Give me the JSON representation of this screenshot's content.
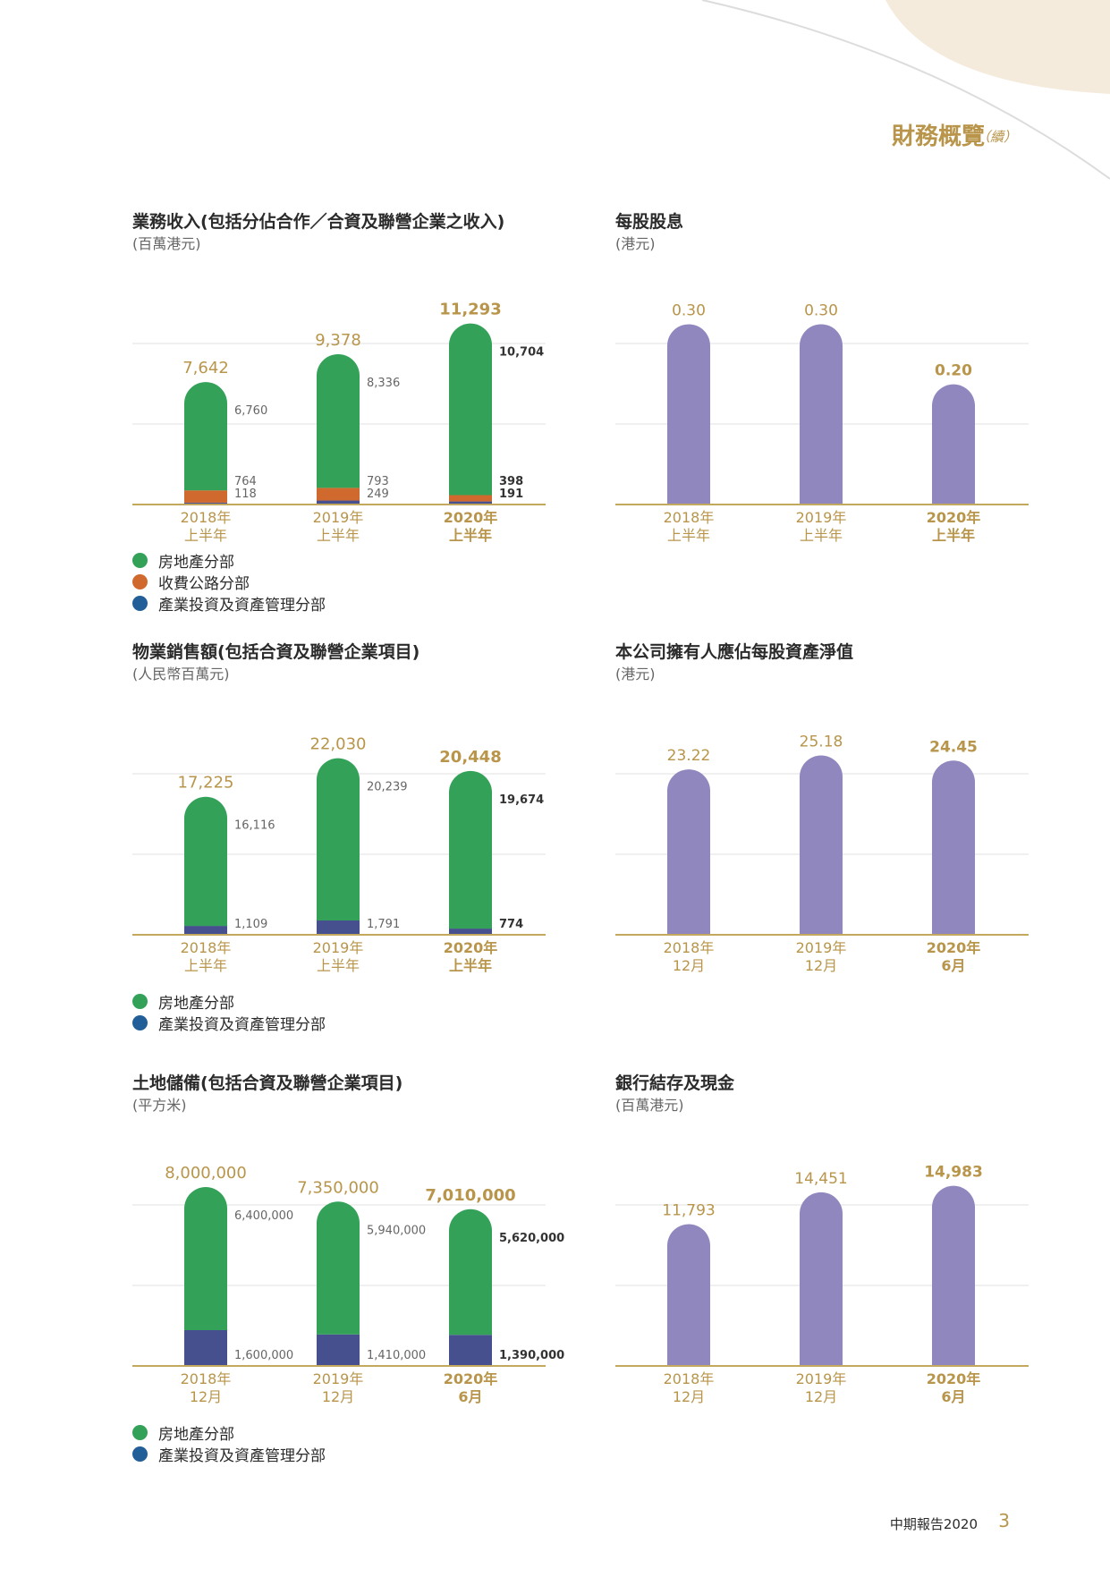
{
  "header": {
    "title": "財務概覽",
    "suffix": "（續）"
  },
  "footer": {
    "report": "中期報告2020",
    "page": "3"
  },
  "colors": {
    "property": "#33a258",
    "toll_road": "#d0692d",
    "investment_bar": "#47508f",
    "investment_legend": "#225e97",
    "per_share": "#9087bf",
    "gold": "#b8954a",
    "grid": "#e2e2e2"
  },
  "legends": {
    "property": "房地產分部",
    "toll_road": "收費公路分部",
    "investment": "產業投資及資產管理分部"
  },
  "chart_data": [
    {
      "type": "bar",
      "stacked": true,
      "title": "業務收入(包括分佔合作／合資及聯營企業之收入)",
      "unit": "(百萬港元)",
      "categories": [
        "2018年\n上半年",
        "2019年\n上半年",
        "2020年\n上半年"
      ],
      "totals": [
        "7,642",
        "9,378",
        "11,293"
      ],
      "ylim": [
        0,
        12000
      ],
      "series": [
        {
          "name": "產業投資及資產管理分部",
          "color_key": "investment_bar",
          "values": [
            118,
            249,
            191
          ],
          "labels": [
            "118",
            "249",
            "191"
          ]
        },
        {
          "name": "收費公路分部",
          "color_key": "toll_road",
          "values": [
            764,
            793,
            398
          ],
          "labels": [
            "764",
            "793",
            "398"
          ]
        },
        {
          "name": "房地產分部",
          "color_key": "property",
          "values": [
            6760,
            8336,
            10704
          ],
          "labels": [
            "6,760",
            "8,336",
            "10,704"
          ]
        }
      ],
      "legend": [
        "property",
        "toll_road",
        "investment"
      ]
    },
    {
      "type": "bar",
      "title": "每股股息",
      "unit": "(港元)",
      "categories": [
        "2018年\n上半年",
        "2019年\n上半年",
        "2020年\n上半年"
      ],
      "values": [
        0.3,
        0.3,
        0.2
      ],
      "labels": [
        "0.30",
        "0.30",
        "0.20"
      ],
      "ylim": [
        0,
        0.32
      ]
    },
    {
      "type": "bar",
      "stacked": true,
      "title": "物業銷售額(包括合資及聯營企業項目)",
      "unit": "(人民幣百萬元)",
      "categories": [
        "2018年\n上半年",
        "2019年\n上半年",
        "2020年\n上半年"
      ],
      "totals": [
        "17,225",
        "22,030",
        "20,448"
      ],
      "ylim": [
        0,
        24000
      ],
      "series": [
        {
          "name": "產業投資及資產管理分部",
          "color_key": "investment_bar",
          "values": [
            1109,
            1791,
            774
          ],
          "labels": [
            "1,109",
            "1,791",
            "774"
          ]
        },
        {
          "name": "房地產分部",
          "color_key": "property",
          "values": [
            16116,
            20239,
            19674
          ],
          "labels": [
            "16,116",
            "20,239",
            "19,674"
          ]
        }
      ],
      "legend": [
        "property",
        "investment"
      ]
    },
    {
      "type": "bar",
      "title": "本公司擁有人應佔每股資產淨值",
      "unit": "(港元)",
      "categories": [
        "2018年\n12月",
        "2019年\n12月",
        "2020年\n6月"
      ],
      "values": [
        23.22,
        25.18,
        24.45
      ],
      "labels": [
        "23.22",
        "25.18",
        "24.45"
      ],
      "ylim": [
        0,
        27
      ]
    },
    {
      "type": "bar",
      "stacked": true,
      "title": "土地儲備(包括合資及聯營企業項目)",
      "unit": "(平方米)",
      "categories": [
        "2018年\n12月",
        "2019年\n12月",
        "2020年\n6月"
      ],
      "totals": [
        "8,000,000",
        "7,350,000",
        "7,010,000"
      ],
      "ylim": [
        0,
        8600000
      ],
      "series": [
        {
          "name": "產業投資及資產管理分部",
          "color_key": "investment_bar",
          "values": [
            1600000,
            1410000,
            1390000
          ],
          "labels": [
            "1,600,000",
            "1,410,000",
            "1,390,000"
          ]
        },
        {
          "name": "房地產分部",
          "color_key": "property",
          "values": [
            6400000,
            5940000,
            5620000
          ],
          "labels": [
            "6,400,000",
            "5,940,000",
            "5,620,000"
          ]
        }
      ],
      "legend": [
        "property",
        "investment"
      ]
    },
    {
      "type": "bar",
      "title": "銀行結存及現金",
      "unit": "(百萬港元)",
      "categories": [
        "2018年\n12月",
        "2019年\n12月",
        "2020年\n6月"
      ],
      "values": [
        11793,
        14451,
        14983
      ],
      "labels": [
        "11,793",
        "14,451",
        "14,983"
      ],
      "ylim": [
        0,
        16000
      ]
    }
  ]
}
